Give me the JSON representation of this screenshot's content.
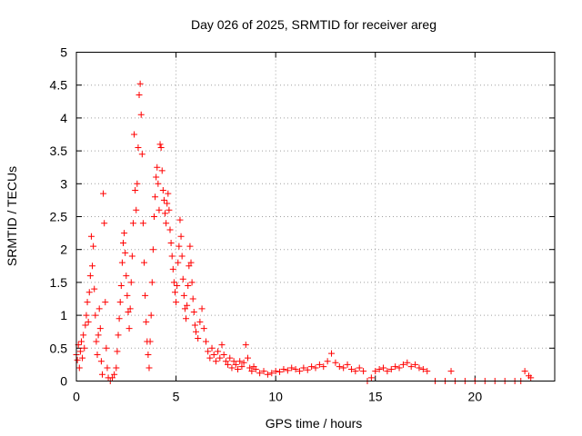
{
  "chart_data": {
    "type": "scatter",
    "title": "Day 026 of 2025, SRMTID for receiver areg",
    "xlabel": "GPS time / hours",
    "ylabel": "SRMTID / TECUs",
    "xlim": [
      0,
      24
    ],
    "ylim": [
      0,
      5
    ],
    "xticks": [
      0,
      5,
      10,
      15,
      20
    ],
    "xtick_labels": [
      "0",
      "5",
      "10",
      "15",
      "20"
    ],
    "yticks": [
      0,
      0.5,
      1,
      1.5,
      2,
      2.5,
      3,
      3.5,
      4,
      4.5,
      5
    ],
    "ytick_labels": [
      "0",
      "0.5",
      "1",
      "1.5",
      "2",
      "2.5",
      "3",
      "3.5",
      "4",
      "4.5",
      "5"
    ],
    "grid": true,
    "marker": "+",
    "color": "#ff0000",
    "series": [
      {
        "name": "SRMTID",
        "points": [
          [
            0.0,
            0.4
          ],
          [
            0.05,
            0.32
          ],
          [
            0.1,
            0.55
          ],
          [
            0.15,
            0.2
          ],
          [
            0.2,
            0.45
          ],
          [
            0.25,
            0.6
          ],
          [
            0.3,
            0.35
          ],
          [
            0.35,
            0.7
          ],
          [
            0.4,
            0.5
          ],
          [
            0.45,
            0.85
          ],
          [
            0.5,
            1.0
          ],
          [
            0.55,
            1.2
          ],
          [
            0.6,
            0.9
          ],
          [
            0.65,
            1.35
          ],
          [
            0.7,
            1.6
          ],
          [
            0.75,
            2.2
          ],
          [
            0.8,
            1.75
          ],
          [
            0.85,
            2.05
          ],
          [
            0.9,
            1.4
          ],
          [
            0.95,
            1.0
          ],
          [
            1.0,
            0.6
          ],
          [
            1.05,
            0.4
          ],
          [
            1.1,
            0.7
          ],
          [
            1.15,
            1.1
          ],
          [
            1.2,
            0.8
          ],
          [
            1.25,
            0.3
          ],
          [
            1.3,
            0.1
          ],
          [
            1.35,
            2.85
          ],
          [
            1.4,
            2.4
          ],
          [
            1.45,
            1.2
          ],
          [
            1.5,
            0.5
          ],
          [
            1.55,
            0.2
          ],
          [
            1.6,
            0.05
          ],
          [
            1.7,
            0.0
          ],
          [
            1.8,
            0.05
          ],
          [
            1.9,
            0.1
          ],
          [
            2.0,
            0.2
          ],
          [
            2.05,
            0.45
          ],
          [
            2.1,
            0.7
          ],
          [
            2.15,
            0.95
          ],
          [
            2.2,
            1.2
          ],
          [
            2.25,
            1.45
          ],
          [
            2.3,
            1.8
          ],
          [
            2.35,
            2.1
          ],
          [
            2.4,
            2.25
          ],
          [
            2.45,
            1.95
          ],
          [
            2.5,
            1.6
          ],
          [
            2.55,
            1.3
          ],
          [
            2.6,
            1.05
          ],
          [
            2.65,
            0.8
          ],
          [
            2.7,
            1.1
          ],
          [
            2.75,
            1.5
          ],
          [
            2.8,
            1.9
          ],
          [
            2.85,
            2.4
          ],
          [
            2.9,
            3.75
          ],
          [
            2.95,
            2.9
          ],
          [
            3.0,
            2.6
          ],
          [
            3.05,
            3.0
          ],
          [
            3.1,
            3.55
          ],
          [
            3.15,
            4.35
          ],
          [
            3.2,
            4.52
          ],
          [
            3.25,
            4.05
          ],
          [
            3.3,
            3.45
          ],
          [
            3.35,
            2.4
          ],
          [
            3.4,
            1.8
          ],
          [
            3.45,
            1.3
          ],
          [
            3.5,
            0.9
          ],
          [
            3.55,
            0.6
          ],
          [
            3.6,
            0.4
          ],
          [
            3.65,
            0.2
          ],
          [
            3.7,
            0.6
          ],
          [
            3.75,
            1.0
          ],
          [
            3.8,
            1.5
          ],
          [
            3.85,
            2.0
          ],
          [
            3.9,
            2.5
          ],
          [
            3.95,
            2.8
          ],
          [
            4.0,
            3.1
          ],
          [
            4.05,
            3.25
          ],
          [
            4.1,
            3.0
          ],
          [
            4.15,
            2.6
          ],
          [
            4.2,
            3.6
          ],
          [
            4.25,
            3.55
          ],
          [
            4.3,
            3.2
          ],
          [
            4.35,
            2.9
          ],
          [
            4.4,
            2.75
          ],
          [
            4.45,
            2.55
          ],
          [
            4.5,
            2.4
          ],
          [
            4.55,
            2.7
          ],
          [
            4.6,
            2.85
          ],
          [
            4.65,
            2.6
          ],
          [
            4.7,
            2.3
          ],
          [
            4.75,
            2.1
          ],
          [
            4.8,
            1.9
          ],
          [
            4.85,
            1.7
          ],
          [
            4.9,
            1.5
          ],
          [
            4.95,
            1.35
          ],
          [
            5.0,
            1.2
          ],
          [
            5.05,
            1.45
          ],
          [
            5.1,
            1.8
          ],
          [
            5.15,
            2.05
          ],
          [
            5.2,
            2.45
          ],
          [
            5.25,
            2.2
          ],
          [
            5.3,
            1.9
          ],
          [
            5.35,
            1.55
          ],
          [
            5.4,
            1.3
          ],
          [
            5.45,
            1.1
          ],
          [
            5.5,
            0.95
          ],
          [
            5.55,
            1.15
          ],
          [
            5.6,
            1.45
          ],
          [
            5.65,
            1.75
          ],
          [
            5.7,
            2.05
          ],
          [
            5.75,
            1.8
          ],
          [
            5.8,
            1.5
          ],
          [
            5.85,
            1.25
          ],
          [
            5.9,
            1.05
          ],
          [
            5.95,
            0.85
          ],
          [
            6.0,
            0.75
          ],
          [
            6.1,
            0.65
          ],
          [
            6.2,
            0.9
          ],
          [
            6.3,
            1.1
          ],
          [
            6.4,
            0.8
          ],
          [
            6.5,
            0.6
          ],
          [
            6.6,
            0.45
          ],
          [
            6.7,
            0.35
          ],
          [
            6.8,
            0.5
          ],
          [
            6.9,
            0.4
          ],
          [
            7.0,
            0.3
          ],
          [
            7.1,
            0.45
          ],
          [
            7.2,
            0.35
          ],
          [
            7.3,
            0.55
          ],
          [
            7.4,
            0.4
          ],
          [
            7.5,
            0.3
          ],
          [
            7.6,
            0.25
          ],
          [
            7.7,
            0.35
          ],
          [
            7.8,
            0.2
          ],
          [
            7.9,
            0.3
          ],
          [
            8.0,
            0.25
          ],
          [
            8.1,
            0.18
          ],
          [
            8.2,
            0.3
          ],
          [
            8.3,
            0.22
          ],
          [
            8.4,
            0.28
          ],
          [
            8.5,
            0.55
          ],
          [
            8.6,
            0.35
          ],
          [
            8.7,
            0.2
          ],
          [
            8.8,
            0.15
          ],
          [
            8.9,
            0.22
          ],
          [
            9.0,
            0.18
          ],
          [
            9.2,
            0.12
          ],
          [
            9.4,
            0.15
          ],
          [
            9.6,
            0.1
          ],
          [
            9.8,
            0.12
          ],
          [
            10.0,
            0.15
          ],
          [
            10.2,
            0.14
          ],
          [
            10.4,
            0.18
          ],
          [
            10.6,
            0.16
          ],
          [
            10.8,
            0.2
          ],
          [
            11.0,
            0.18
          ],
          [
            11.2,
            0.15
          ],
          [
            11.4,
            0.2
          ],
          [
            11.6,
            0.17
          ],
          [
            11.8,
            0.22
          ],
          [
            12.0,
            0.2
          ],
          [
            12.2,
            0.25
          ],
          [
            12.4,
            0.22
          ],
          [
            12.6,
            0.3
          ],
          [
            12.8,
            0.42
          ],
          [
            13.0,
            0.28
          ],
          [
            13.2,
            0.22
          ],
          [
            13.4,
            0.2
          ],
          [
            13.6,
            0.25
          ],
          [
            13.8,
            0.18
          ],
          [
            14.0,
            0.15
          ],
          [
            14.2,
            0.2
          ],
          [
            14.4,
            0.15
          ],
          [
            14.6,
            0.0
          ],
          [
            14.8,
            0.05
          ],
          [
            15.0,
            0.15
          ],
          [
            15.2,
            0.18
          ],
          [
            15.4,
            0.2
          ],
          [
            15.6,
            0.15
          ],
          [
            15.8,
            0.18
          ],
          [
            16.0,
            0.22
          ],
          [
            16.2,
            0.2
          ],
          [
            16.4,
            0.25
          ],
          [
            16.6,
            0.28
          ],
          [
            16.8,
            0.22
          ],
          [
            17.0,
            0.25
          ],
          [
            17.2,
            0.2
          ],
          [
            17.4,
            0.18
          ],
          [
            17.6,
            0.15
          ],
          [
            18.0,
            0.0
          ],
          [
            18.5,
            0.0
          ],
          [
            18.8,
            0.15
          ],
          [
            19.0,
            0.0
          ],
          [
            19.5,
            0.0
          ],
          [
            20.0,
            0.0
          ],
          [
            20.5,
            0.0
          ],
          [
            21.0,
            0.0
          ],
          [
            21.5,
            0.0
          ],
          [
            22.0,
            0.0
          ],
          [
            22.3,
            0.0
          ],
          [
            22.5,
            0.15
          ],
          [
            22.7,
            0.08
          ],
          [
            22.8,
            0.05
          ]
        ]
      }
    ]
  }
}
